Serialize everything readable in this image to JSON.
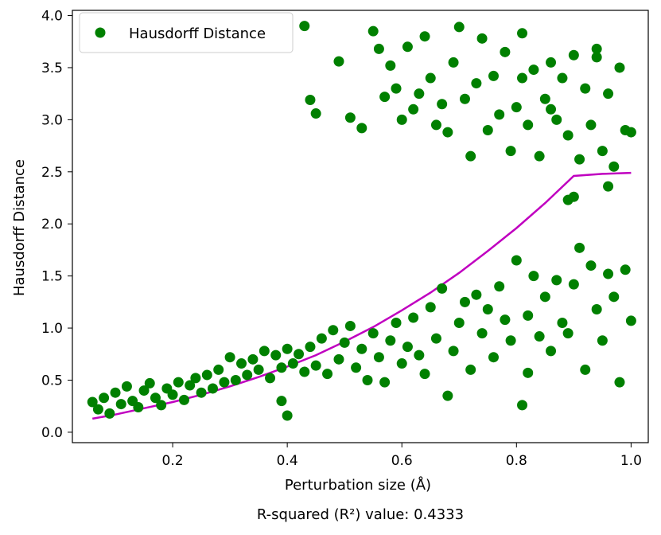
{
  "chart_data": {
    "type": "scatter",
    "xlabel": "Perturbation size (Å)",
    "ylabel": "Hausdorff Distance",
    "caption": "R-squared (R²) value: 0.4333",
    "xlim": [
      0.025,
      1.03
    ],
    "ylim": [
      -0.1,
      4.05
    ],
    "xticks": [
      0.2,
      0.4,
      0.6,
      0.8,
      1.0
    ],
    "xtick_labels": [
      "0.2",
      "0.4",
      "0.6",
      "0.8",
      "1.0"
    ],
    "yticks": [
      0.0,
      0.5,
      1.0,
      1.5,
      2.0,
      2.5,
      3.0,
      3.5,
      4.0
    ],
    "ytick_labels": [
      "0.0",
      "0.5",
      "1.0",
      "1.5",
      "2.0",
      "2.5",
      "3.0",
      "3.5",
      "4.0"
    ],
    "grid": false,
    "legend": {
      "position": "top-left",
      "entries": [
        {
          "label": "Hausdorff Distance",
          "color": "#008000",
          "marker": "circle"
        }
      ]
    },
    "series": [
      {
        "name": "Hausdorff Distance",
        "kind": "scatter",
        "color": "#008000",
        "points": [
          [
            0.06,
            0.29
          ],
          [
            0.07,
            0.22
          ],
          [
            0.08,
            0.33
          ],
          [
            0.09,
            0.18
          ],
          [
            0.1,
            0.38
          ],
          [
            0.11,
            0.27
          ],
          [
            0.12,
            0.44
          ],
          [
            0.13,
            0.3
          ],
          [
            0.14,
            0.24
          ],
          [
            0.15,
            0.4
          ],
          [
            0.16,
            0.47
          ],
          [
            0.17,
            0.33
          ],
          [
            0.18,
            0.26
          ],
          [
            0.19,
            0.42
          ],
          [
            0.2,
            0.36
          ],
          [
            0.21,
            0.48
          ],
          [
            0.22,
            0.31
          ],
          [
            0.23,
            0.45
          ],
          [
            0.24,
            0.52
          ],
          [
            0.25,
            0.38
          ],
          [
            0.26,
            0.55
          ],
          [
            0.27,
            0.42
          ],
          [
            0.28,
            0.6
          ],
          [
            0.29,
            0.48
          ],
          [
            0.3,
            0.72
          ],
          [
            0.31,
            0.5
          ],
          [
            0.32,
            0.66
          ],
          [
            0.33,
            0.55
          ],
          [
            0.34,
            0.7
          ],
          [
            0.35,
            0.6
          ],
          [
            0.36,
            0.78
          ],
          [
            0.37,
            0.52
          ],
          [
            0.38,
            0.74
          ],
          [
            0.39,
            0.62
          ],
          [
            0.4,
            0.8
          ],
          [
            0.4,
            0.16
          ],
          [
            0.39,
            0.3
          ],
          [
            0.41,
            0.66
          ],
          [
            0.42,
            0.75
          ],
          [
            0.43,
            0.58
          ],
          [
            0.44,
            0.82
          ],
          [
            0.45,
            0.64
          ],
          [
            0.46,
            0.9
          ],
          [
            0.47,
            0.56
          ],
          [
            0.48,
            0.98
          ],
          [
            0.49,
            0.7
          ],
          [
            0.5,
            0.86
          ],
          [
            0.51,
            1.02
          ],
          [
            0.52,
            0.62
          ],
          [
            0.53,
            0.8
          ],
          [
            0.54,
            0.5
          ],
          [
            0.55,
            0.95
          ],
          [
            0.56,
            0.72
          ],
          [
            0.57,
            0.48
          ],
          [
            0.58,
            0.88
          ],
          [
            0.59,
            1.05
          ],
          [
            0.6,
            0.66
          ],
          [
            0.61,
            0.82
          ],
          [
            0.62,
            1.1
          ],
          [
            0.63,
            0.74
          ],
          [
            0.64,
            0.56
          ],
          [
            0.65,
            1.2
          ],
          [
            0.66,
            0.9
          ],
          [
            0.67,
            1.38
          ],
          [
            0.68,
            0.35
          ],
          [
            0.69,
            0.78
          ],
          [
            0.7,
            1.05
          ],
          [
            0.71,
            1.25
          ],
          [
            0.72,
            0.6
          ],
          [
            0.73,
            1.32
          ],
          [
            0.74,
            0.95
          ],
          [
            0.75,
            1.18
          ],
          [
            0.76,
            0.72
          ],
          [
            0.77,
            1.4
          ],
          [
            0.78,
            1.08
          ],
          [
            0.79,
            0.88
          ],
          [
            0.8,
            1.65
          ],
          [
            0.81,
            0.26
          ],
          [
            0.82,
            1.12
          ],
          [
            0.83,
            1.5
          ],
          [
            0.84,
            0.92
          ],
          [
            0.85,
            1.3
          ],
          [
            0.86,
            0.78
          ],
          [
            0.87,
            1.46
          ],
          [
            0.88,
            1.05
          ],
          [
            0.89,
            0.95
          ],
          [
            0.9,
            1.42
          ],
          [
            0.91,
            1.77
          ],
          [
            0.92,
            0.6
          ],
          [
            0.93,
            1.6
          ],
          [
            0.94,
            1.18
          ],
          [
            0.95,
            0.88
          ],
          [
            0.96,
            1.52
          ],
          [
            0.97,
            1.3
          ],
          [
            0.98,
            0.48
          ],
          [
            0.99,
            1.56
          ],
          [
            1.0,
            1.07
          ],
          [
            0.82,
            0.57
          ],
          [
            0.43,
            3.9
          ],
          [
            0.44,
            3.19
          ],
          [
            0.45,
            3.06
          ],
          [
            0.49,
            3.56
          ],
          [
            0.51,
            3.02
          ],
          [
            0.53,
            2.92
          ],
          [
            0.55,
            3.85
          ],
          [
            0.56,
            3.68
          ],
          [
            0.57,
            3.22
          ],
          [
            0.58,
            3.52
          ],
          [
            0.59,
            3.3
          ],
          [
            0.6,
            3.0
          ],
          [
            0.61,
            3.7
          ],
          [
            0.62,
            3.1
          ],
          [
            0.63,
            3.25
          ],
          [
            0.64,
            3.8
          ],
          [
            0.65,
            3.4
          ],
          [
            0.66,
            2.95
          ],
          [
            0.67,
            3.15
          ],
          [
            0.68,
            2.88
          ],
          [
            0.69,
            3.55
          ],
          [
            0.7,
            3.89
          ],
          [
            0.71,
            3.2
          ],
          [
            0.72,
            2.65
          ],
          [
            0.73,
            3.35
          ],
          [
            0.74,
            3.78
          ],
          [
            0.75,
            2.9
          ],
          [
            0.76,
            3.42
          ],
          [
            0.77,
            3.05
          ],
          [
            0.78,
            3.65
          ],
          [
            0.79,
            2.7
          ],
          [
            0.8,
            3.12
          ],
          [
            0.81,
            3.83
          ],
          [
            0.82,
            2.95
          ],
          [
            0.83,
            3.48
          ],
          [
            0.84,
            2.65
          ],
          [
            0.85,
            3.2
          ],
          [
            0.86,
            3.55
          ],
          [
            0.87,
            3.0
          ],
          [
            0.88,
            3.4
          ],
          [
            0.89,
            2.85
          ],
          [
            0.9,
            3.62
          ],
          [
            0.91,
            2.62
          ],
          [
            0.92,
            3.3
          ],
          [
            0.93,
            2.95
          ],
          [
            0.94,
            3.68
          ],
          [
            0.95,
            2.7
          ],
          [
            0.96,
            3.25
          ],
          [
            0.97,
            2.55
          ],
          [
            0.98,
            3.5
          ],
          [
            0.99,
            2.9
          ],
          [
            1.0,
            2.88
          ],
          [
            0.89,
            2.23
          ],
          [
            0.9,
            2.26
          ],
          [
            0.96,
            2.36
          ],
          [
            0.81,
            3.4
          ],
          [
            0.86,
            3.1
          ],
          [
            0.94,
            3.6
          ]
        ]
      },
      {
        "name": "",
        "kind": "fit_line",
        "color": "#c000c0",
        "points": [
          [
            0.06,
            0.13
          ],
          [
            0.1,
            0.17
          ],
          [
            0.15,
            0.23
          ],
          [
            0.2,
            0.29
          ],
          [
            0.25,
            0.36
          ],
          [
            0.3,
            0.44
          ],
          [
            0.35,
            0.53
          ],
          [
            0.4,
            0.63
          ],
          [
            0.45,
            0.74
          ],
          [
            0.5,
            0.87
          ],
          [
            0.55,
            1.01
          ],
          [
            0.6,
            1.17
          ],
          [
            0.65,
            1.34
          ],
          [
            0.7,
            1.53
          ],
          [
            0.75,
            1.74
          ],
          [
            0.8,
            1.96
          ],
          [
            0.85,
            2.2
          ],
          [
            0.9,
            2.46
          ],
          [
            0.95,
            2.48
          ],
          [
            1.0,
            2.49
          ]
        ]
      }
    ]
  }
}
